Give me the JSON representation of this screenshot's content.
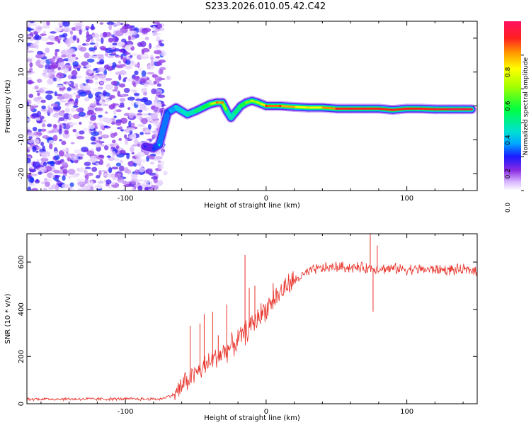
{
  "title": "S233.2026.010.05.42.C42",
  "chart_data": [
    {
      "type": "heatmap",
      "name": "spectrogram",
      "xlabel": "Height of straight line (km)",
      "ylabel": "Frequency (Hz)",
      "xlim": [
        -170,
        150
      ],
      "ylim": [
        -25,
        25
      ],
      "xticks": [
        -100,
        0,
        100
      ],
      "xtick_labels": [
        "-100",
        "0",
        "100"
      ],
      "yticks": [
        -20,
        -10,
        0,
        10,
        20
      ],
      "ytick_labels": [
        "-20",
        "-10",
        "0",
        "10",
        "20"
      ],
      "colorbar": {
        "label": "Normalized spectral amplitude",
        "range": [
          0,
          1
        ],
        "ticks": [
          0,
          0.2,
          0.4,
          0.6,
          0.8
        ],
        "tick_labels": [
          "0.0",
          "0.2",
          "0.4",
          "0.6",
          "0.8"
        ]
      },
      "noise_region_x": [
        -170,
        -73
      ],
      "ridge": [
        {
          "x": -86,
          "y": -12.0,
          "amp": 0.15
        },
        {
          "x": -80,
          "y": -12.5,
          "amp": 0.15
        },
        {
          "x": -76,
          "y": -11.5,
          "amp": 0.3
        },
        {
          "x": -70,
          "y": -2.0,
          "amp": 0.2
        },
        {
          "x": -68,
          "y": -1.5,
          "amp": 0.25
        },
        {
          "x": -64,
          "y": -0.5,
          "amp": 0.3
        },
        {
          "x": -60,
          "y": -1.5,
          "amp": 0.35
        },
        {
          "x": -56,
          "y": -2.5,
          "amp": 0.35
        },
        {
          "x": -50,
          "y": -1.5,
          "amp": 0.4
        },
        {
          "x": -45,
          "y": -0.5,
          "amp": 0.45
        },
        {
          "x": -40,
          "y": 0.5,
          "amp": 0.5
        },
        {
          "x": -35,
          "y": 1.0,
          "amp": 0.8
        },
        {
          "x": -31,
          "y": 1.0,
          "amp": 0.8
        },
        {
          "x": -28,
          "y": -1.5,
          "amp": 0.4
        },
        {
          "x": -25,
          "y": -3.5,
          "amp": 0.35
        },
        {
          "x": -22,
          "y": -2.0,
          "amp": 0.4
        },
        {
          "x": -18,
          "y": 0.0,
          "amp": 0.45
        },
        {
          "x": -14,
          "y": 1.0,
          "amp": 0.55
        },
        {
          "x": -10,
          "y": 1.5,
          "amp": 0.6
        },
        {
          "x": -6,
          "y": 1.0,
          "amp": 0.6
        },
        {
          "x": -3,
          "y": 0.5,
          "amp": 0.65
        },
        {
          "x": 0,
          "y": 0.0,
          "amp": 0.85
        },
        {
          "x": 10,
          "y": 0.0,
          "amp": 0.85
        },
        {
          "x": 20,
          "y": -0.3,
          "amp": 0.75
        },
        {
          "x": 30,
          "y": -0.5,
          "amp": 0.7
        },
        {
          "x": 40,
          "y": -0.5,
          "amp": 0.75
        },
        {
          "x": 50,
          "y": -0.8,
          "amp": 0.9
        },
        {
          "x": 60,
          "y": -0.8,
          "amp": 0.9
        },
        {
          "x": 70,
          "y": -0.8,
          "amp": 0.9
        },
        {
          "x": 80,
          "y": -0.8,
          "amp": 0.9
        },
        {
          "x": 90,
          "y": -1.2,
          "amp": 0.9
        },
        {
          "x": 100,
          "y": -0.8,
          "amp": 0.9
        },
        {
          "x": 110,
          "y": -0.8,
          "amp": 0.9
        },
        {
          "x": 120,
          "y": -1.0,
          "amp": 0.9
        },
        {
          "x": 130,
          "y": -1.0,
          "amp": 0.95
        },
        {
          "x": 140,
          "y": -1.0,
          "amp": 0.95
        },
        {
          "x": 146,
          "y": -1.0,
          "amp": 0.95
        }
      ]
    },
    {
      "type": "line",
      "name": "snr",
      "xlabel": "Height of straight line (km)",
      "ylabel": "SNR (10 * v/v)",
      "xlim": [
        -170,
        150
      ],
      "ylim": [
        0,
        720
      ],
      "xticks": [
        -100,
        0,
        100
      ],
      "xtick_labels": [
        "-100",
        "0",
        "100"
      ],
      "yticks": [
        0,
        200,
        400,
        600
      ],
      "ytick_labels": [
        "0",
        "200",
        "400",
        "600"
      ],
      "color": "#e8322a",
      "trend": [
        {
          "x": -170,
          "y": 20
        },
        {
          "x": -75,
          "y": 20
        },
        {
          "x": -65,
          "y": 40
        },
        {
          "x": -55,
          "y": 110
        },
        {
          "x": -45,
          "y": 150
        },
        {
          "x": -35,
          "y": 200
        },
        {
          "x": -25,
          "y": 240
        },
        {
          "x": -15,
          "y": 300
        },
        {
          "x": -5,
          "y": 370
        },
        {
          "x": 5,
          "y": 440
        },
        {
          "x": 15,
          "y": 500
        },
        {
          "x": 25,
          "y": 540
        },
        {
          "x": 35,
          "y": 570
        },
        {
          "x": 50,
          "y": 580
        },
        {
          "x": 70,
          "y": 575
        },
        {
          "x": 100,
          "y": 570
        },
        {
          "x": 150,
          "y": 565
        }
      ],
      "spikes": [
        {
          "x": -54,
          "y": 330
        },
        {
          "x": -47,
          "y": 340
        },
        {
          "x": -44,
          "y": 380
        },
        {
          "x": -38,
          "y": 390
        },
        {
          "x": -34,
          "y": 290
        },
        {
          "x": -28,
          "y": 420
        },
        {
          "x": -15,
          "y": 630
        },
        {
          "x": -12,
          "y": 490
        },
        {
          "x": -8,
          "y": 500
        },
        {
          "x": 5,
          "y": 510
        },
        {
          "x": 74,
          "y": 720
        },
        {
          "x": 76,
          "y": 390
        },
        {
          "x": 79,
          "y": 670
        }
      ]
    }
  ]
}
